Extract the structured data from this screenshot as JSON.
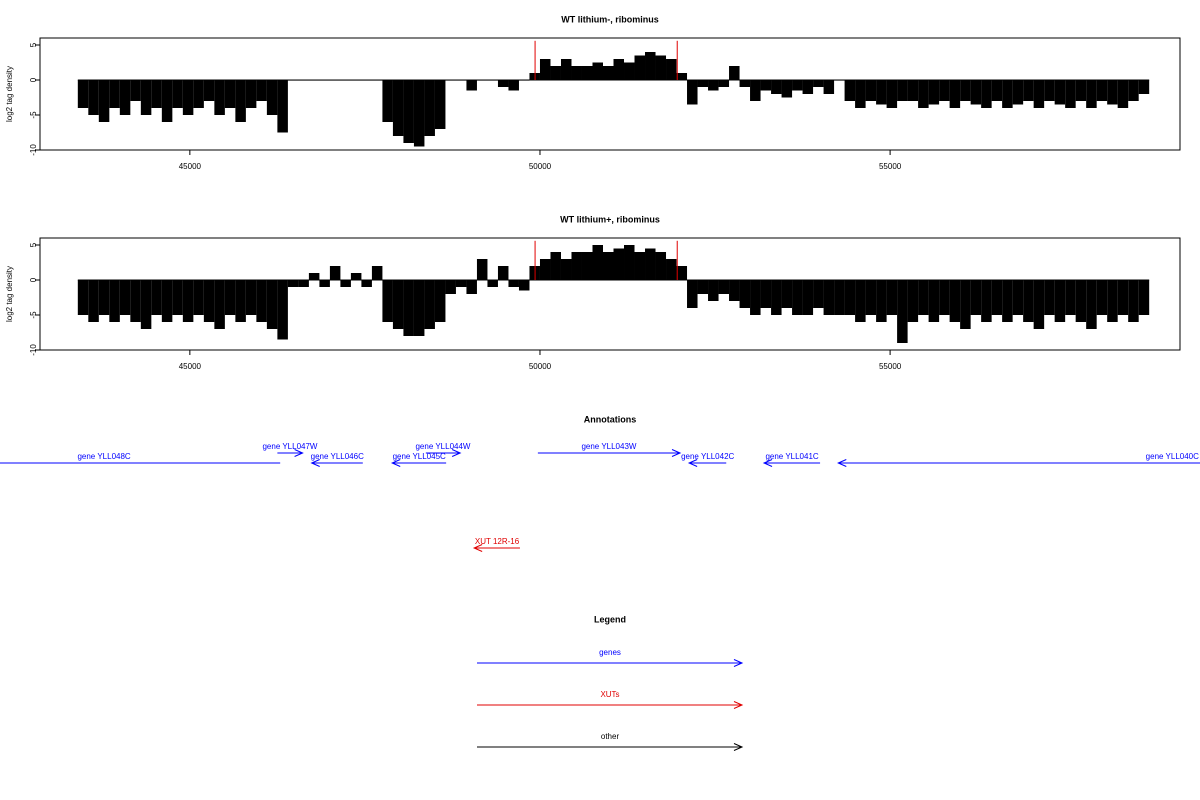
{
  "chart_data": [
    {
      "type": "bar",
      "title": "WT lithium-, ribominus",
      "ylabel": "log2 tag density",
      "xlim": [
        42860,
        59140
      ],
      "ylim": [
        -10,
        6
      ],
      "xticks": [
        45000,
        50000,
        55000
      ],
      "yticks": [
        5,
        0,
        -5,
        -10
      ],
      "color": "#000000",
      "x": [
        43400,
        43550,
        43700,
        43850,
        44000,
        44150,
        44300,
        44450,
        44600,
        44750,
        44900,
        45050,
        45200,
        45350,
        45500,
        45650,
        45800,
        45950,
        46100,
        46250,
        46400,
        46550,
        46700,
        46850,
        47000,
        47150,
        47300,
        47450,
        47600,
        47750,
        47900,
        48050,
        48200,
        48350,
        48500,
        48650,
        48800,
        48950,
        49100,
        49250,
        49400,
        49550,
        49700,
        49850,
        50000,
        50150,
        50300,
        50450,
        50600,
        50750,
        50900,
        51050,
        51200,
        51350,
        51500,
        51650,
        51800,
        51950,
        52100,
        52250,
        52400,
        52550,
        52700,
        52850,
        53000,
        53150,
        53300,
        53450,
        53600,
        53750,
        53900,
        54050,
        54200,
        54350,
        54500,
        54650,
        54800,
        54950,
        55100,
        55250,
        55400,
        55550,
        55700,
        55850,
        56000,
        56150,
        56300,
        56450,
        56600,
        56750,
        56900,
        57050,
        57200,
        57350,
        57500,
        57650,
        57800,
        57950,
        58100,
        58250,
        58400,
        58550
      ],
      "values": [
        -4,
        -5,
        -6,
        -4,
        -5,
        -3,
        -5,
        -4,
        -6,
        -4,
        -5,
        -4,
        -3,
        -5,
        -4,
        -6,
        -4,
        -3,
        -5,
        -7.5,
        0,
        0,
        0,
        0,
        0,
        0,
        0,
        0,
        0,
        -6,
        -8,
        -9,
        -9.5,
        -8,
        -7,
        0,
        0,
        -1.5,
        0,
        0,
        -1,
        -1.5,
        0,
        1,
        3,
        2,
        3,
        2,
        2,
        2.5,
        2,
        3,
        2.5,
        3.5,
        4,
        3.5,
        3,
        1,
        -3.5,
        -1,
        -1.5,
        -1,
        2,
        -1,
        -3,
        -1.5,
        -2,
        -2.5,
        -1.5,
        -2,
        -1,
        -2,
        0,
        -3,
        -4,
        -3,
        -3.5,
        -4,
        -3,
        -3,
        -4,
        -3.5,
        -3,
        -4,
        -3,
        -3.5,
        -4,
        -3,
        -4,
        -3.5,
        -3,
        -4,
        -3,
        -3.5,
        -4,
        -3,
        -4,
        -3,
        -3.5,
        -4,
        -3,
        -2
      ],
      "markers": {
        "x": [
          49930,
          51960
        ],
        "values": [
          5.6,
          5.6
        ],
        "color": "#e00000"
      }
    },
    {
      "type": "bar",
      "title": "WT lithium+, ribominus",
      "ylabel": "log2 tag density",
      "xlim": [
        42860,
        59140
      ],
      "ylim": [
        -10,
        6
      ],
      "xticks": [
        45000,
        50000,
        55000
      ],
      "yticks": [
        5,
        0,
        -5,
        -10
      ],
      "color": "#000000",
      "x": [
        43400,
        43550,
        43700,
        43850,
        44000,
        44150,
        44300,
        44450,
        44600,
        44750,
        44900,
        45050,
        45200,
        45350,
        45500,
        45650,
        45800,
        45950,
        46100,
        46250,
        46400,
        46550,
        46700,
        46850,
        47000,
        47150,
        47300,
        47450,
        47600,
        47750,
        47900,
        48050,
        48200,
        48350,
        48500,
        48650,
        48800,
        48950,
        49100,
        49250,
        49400,
        49550,
        49700,
        49850,
        50000,
        50150,
        50300,
        50450,
        50600,
        50750,
        50900,
        51050,
        51200,
        51350,
        51500,
        51650,
        51800,
        51950,
        52100,
        52250,
        52400,
        52550,
        52700,
        52850,
        53000,
        53150,
        53300,
        53450,
        53600,
        53750,
        53900,
        54050,
        54200,
        54350,
        54500,
        54650,
        54800,
        54950,
        55100,
        55250,
        55400,
        55550,
        55700,
        55850,
        56000,
        56150,
        56300,
        56450,
        56600,
        56750,
        56900,
        57050,
        57200,
        57350,
        57500,
        57650,
        57800,
        57950,
        58100,
        58250,
        58400,
        58550
      ],
      "values": [
        -5,
        -6,
        -5,
        -6,
        -5,
        -6,
        -7,
        -5,
        -6,
        -5,
        -6,
        -5,
        -6,
        -7,
        -5,
        -6,
        -5,
        -6,
        -7,
        -8.5,
        -1,
        -1,
        1,
        -1,
        2,
        -1,
        1,
        -1,
        2,
        -6,
        -7,
        -8,
        -8,
        -7,
        -6,
        -2,
        -1,
        -2,
        3,
        -1,
        2,
        -1,
        -1.5,
        2,
        3,
        4,
        3,
        4,
        4,
        5,
        4,
        4.5,
        5,
        4,
        4.5,
        4,
        3,
        2,
        -4,
        -2,
        -3,
        -2,
        -3,
        -4,
        -5,
        -4,
        -5,
        -4,
        -5,
        -5,
        -4,
        -5,
        -5,
        -5,
        -6,
        -5,
        -6,
        -5,
        -9,
        -6,
        -5,
        -6,
        -5,
        -6,
        -7,
        -5,
        -6,
        -5,
        -6,
        -5,
        -6,
        -7,
        -5,
        -6,
        -5,
        -6,
        -7,
        -5,
        -6,
        -5,
        -6,
        -5
      ],
      "markers": {
        "x": [
          49930,
          51960
        ],
        "values": [
          5.6,
          5.6
        ],
        "color": "#e00000"
      }
    }
  ],
  "annotations": {
    "title": "Annotations",
    "genes": {
      "color": "#0000ff",
      "items": [
        {
          "label": "gene YLL048C",
          "start": 41260,
          "end": 46290,
          "strand": "-"
        },
        {
          "label": "gene YLL047W",
          "start": 46250,
          "end": 46610,
          "strand": "+"
        },
        {
          "label": "gene YLL046C",
          "start": 46740,
          "end": 47470,
          "strand": "-"
        },
        {
          "label": "gene YLL045C",
          "start": 47890,
          "end": 48660,
          "strand": "-"
        },
        {
          "label": "gene YLL044W",
          "start": 48370,
          "end": 48860,
          "strand": "+"
        },
        {
          "label": "gene YLL043W",
          "start": 49970,
          "end": 52000,
          "strand": "+"
        },
        {
          "label": "gene YLL042C",
          "start": 52130,
          "end": 52660,
          "strand": "-"
        },
        {
          "label": "gene YLL041C",
          "start": 53200,
          "end": 54000,
          "strand": "-"
        },
        {
          "label": "gene YLL040C",
          "start": 54260,
          "end": 63800,
          "strand": "-"
        }
      ]
    },
    "xuts": {
      "color": "#e00000",
      "items": [
        {
          "label": "XUT 12R-16",
          "start": 49060,
          "end": 49714,
          "strand": "-"
        }
      ]
    }
  },
  "legend": {
    "title": "Legend",
    "items": [
      {
        "label": "genes",
        "color": "#0000ff"
      },
      {
        "label": "XUTs",
        "color": "#e00000"
      },
      {
        "label": "other",
        "color": "#000000"
      }
    ]
  }
}
